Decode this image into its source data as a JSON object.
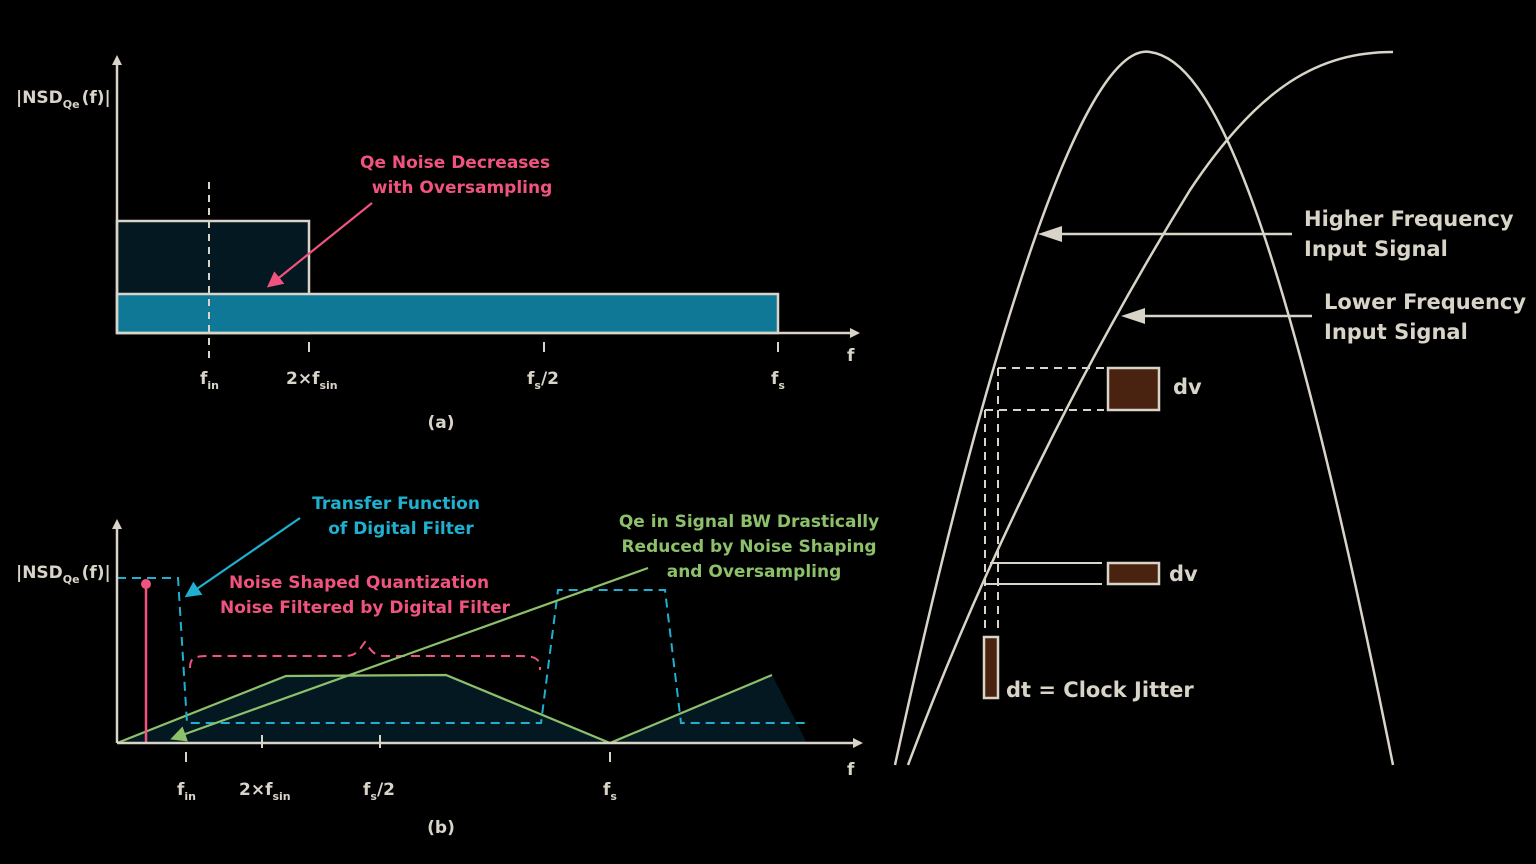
{
  "colors": {
    "background": "#000000",
    "axis": "#d8d4c8",
    "noise_dark": "#031820",
    "noise_blue": "#0e7896",
    "pink": "#f0547e",
    "cyan": "#1fb0d0",
    "green": "#8cc06a",
    "jitter_box": "#4a2210"
  },
  "panel_a": {
    "ylabel_main": "|NSD",
    "ylabel_sub": "Qe",
    "ylabel_end": "(f)|",
    "xlabel": "f",
    "ticks": [
      {
        "main": "f",
        "sub": "in",
        "suffix": ""
      },
      {
        "main": "2×f",
        "sub": "sin",
        "suffix": ""
      },
      {
        "main": "f",
        "sub": "s",
        "suffix": "/2"
      },
      {
        "main": "f",
        "sub": "s",
        "suffix": ""
      }
    ],
    "annotation": [
      "Qe Noise Decreases",
      "with Oversampling"
    ],
    "caption": "(a)"
  },
  "panel_b": {
    "ylabel_main": "|NSD",
    "ylabel_sub": "Qe",
    "ylabel_end": "(f)|",
    "xlabel": "f",
    "ticks": [
      {
        "main": "f",
        "sub": "in",
        "suffix": ""
      },
      {
        "main": "2×f",
        "sub": "sin",
        "suffix": ""
      },
      {
        "main": "f",
        "sub": "s",
        "suffix": "/2"
      },
      {
        "main": "f",
        "sub": "s",
        "suffix": ""
      }
    ],
    "annotation_cyan": [
      "Transfer Function",
      "of Digital Filter"
    ],
    "annotation_pink": [
      "Noise Shaped Quantization",
      "Noise Filtered by Digital Filter"
    ],
    "annotation_green": [
      "Qe in Signal BW Drastically",
      "Reduced by Noise Shaping",
      "and Oversampling"
    ],
    "caption": "(b)"
  },
  "jitter": {
    "higher_label": [
      "Higher Frequency",
      "Input Signal"
    ],
    "lower_label": [
      "Lower Frequency",
      "Input Signal"
    ],
    "dv_top": "dv",
    "dv_bottom": "dv",
    "dt_label": "dt = Clock Jitter"
  }
}
